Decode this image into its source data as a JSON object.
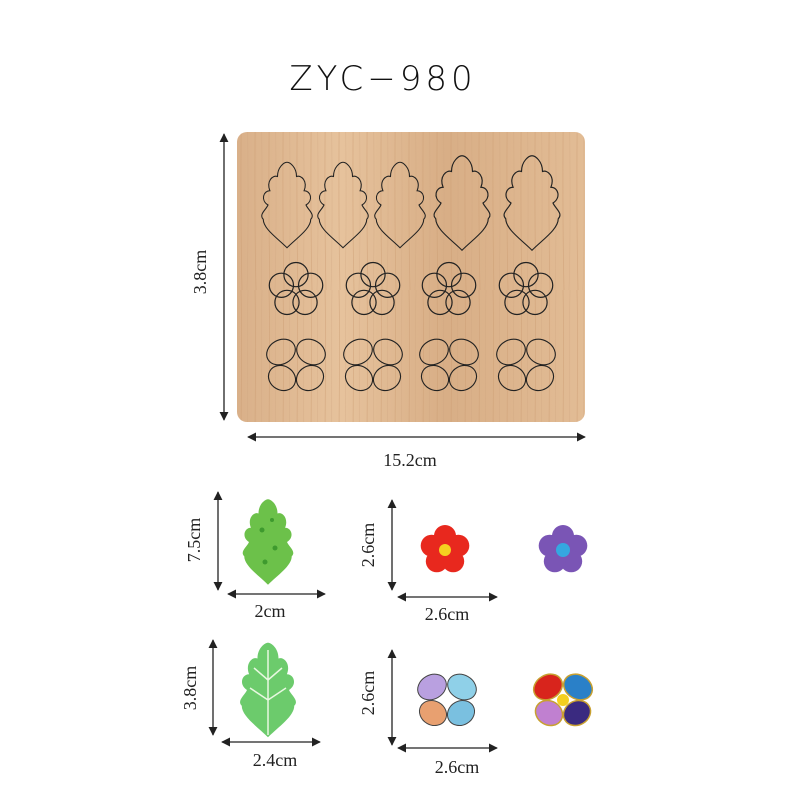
{
  "title": "ZYC−980",
  "board": {
    "height": "3.8cm",
    "width": "15.2cm"
  },
  "samples": [
    {
      "height": "7.5cm",
      "width": "2cm"
    },
    {
      "height": "2.6cm",
      "width": "2.6cm"
    },
    {
      "height": "3.8cm",
      "width": "2.4cm"
    },
    {
      "height": "2.6cm",
      "width": "2.6cm"
    }
  ]
}
